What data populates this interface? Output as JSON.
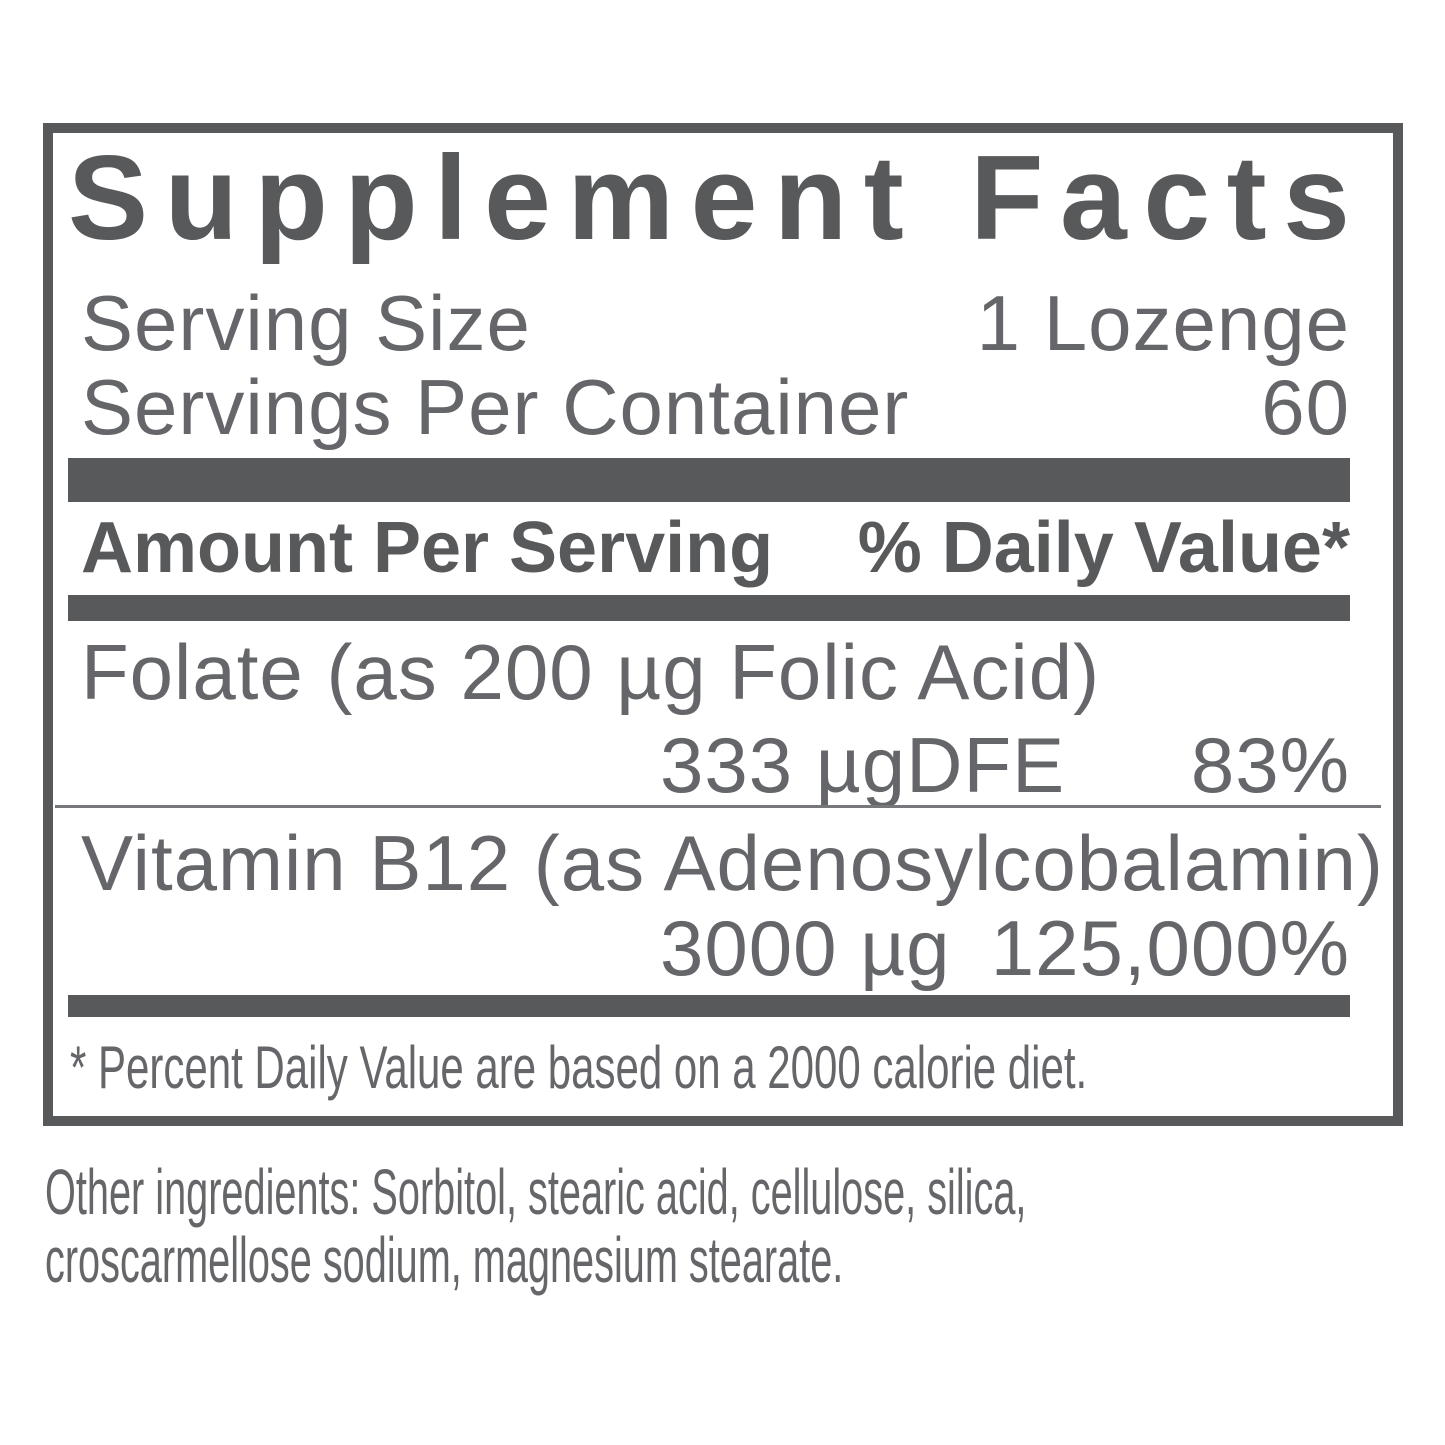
{
  "colors": {
    "ink": "#58595b",
    "body_ink": "#656669"
  },
  "panel": {
    "title": "Supplement Facts",
    "serving_size": {
      "label": "Serving Size",
      "value": "1 Lozenge"
    },
    "servings_per_container": {
      "label": "Servings Per Container",
      "value": "60"
    },
    "header": {
      "amount": "Amount Per Serving",
      "daily_value": "% Daily Value*"
    },
    "nutrients": [
      {
        "name": "Folate (as 200 µg Folic Acid)",
        "amount": "333 µgDFE",
        "daily_value": "83%"
      },
      {
        "name": "Vitamin B12 (as Adenosylcobalamin)",
        "amount": "3000 µg",
        "daily_value": "125,000%"
      }
    ],
    "footnote": "* Percent Daily Value are based on a 2000 calorie diet."
  },
  "other_ingredients": {
    "lines": [
      "Other ingredients: Sorbitol, stearic acid, cellulose, silica,",
      "croscarmellose sodium, magnesium stearate."
    ]
  }
}
